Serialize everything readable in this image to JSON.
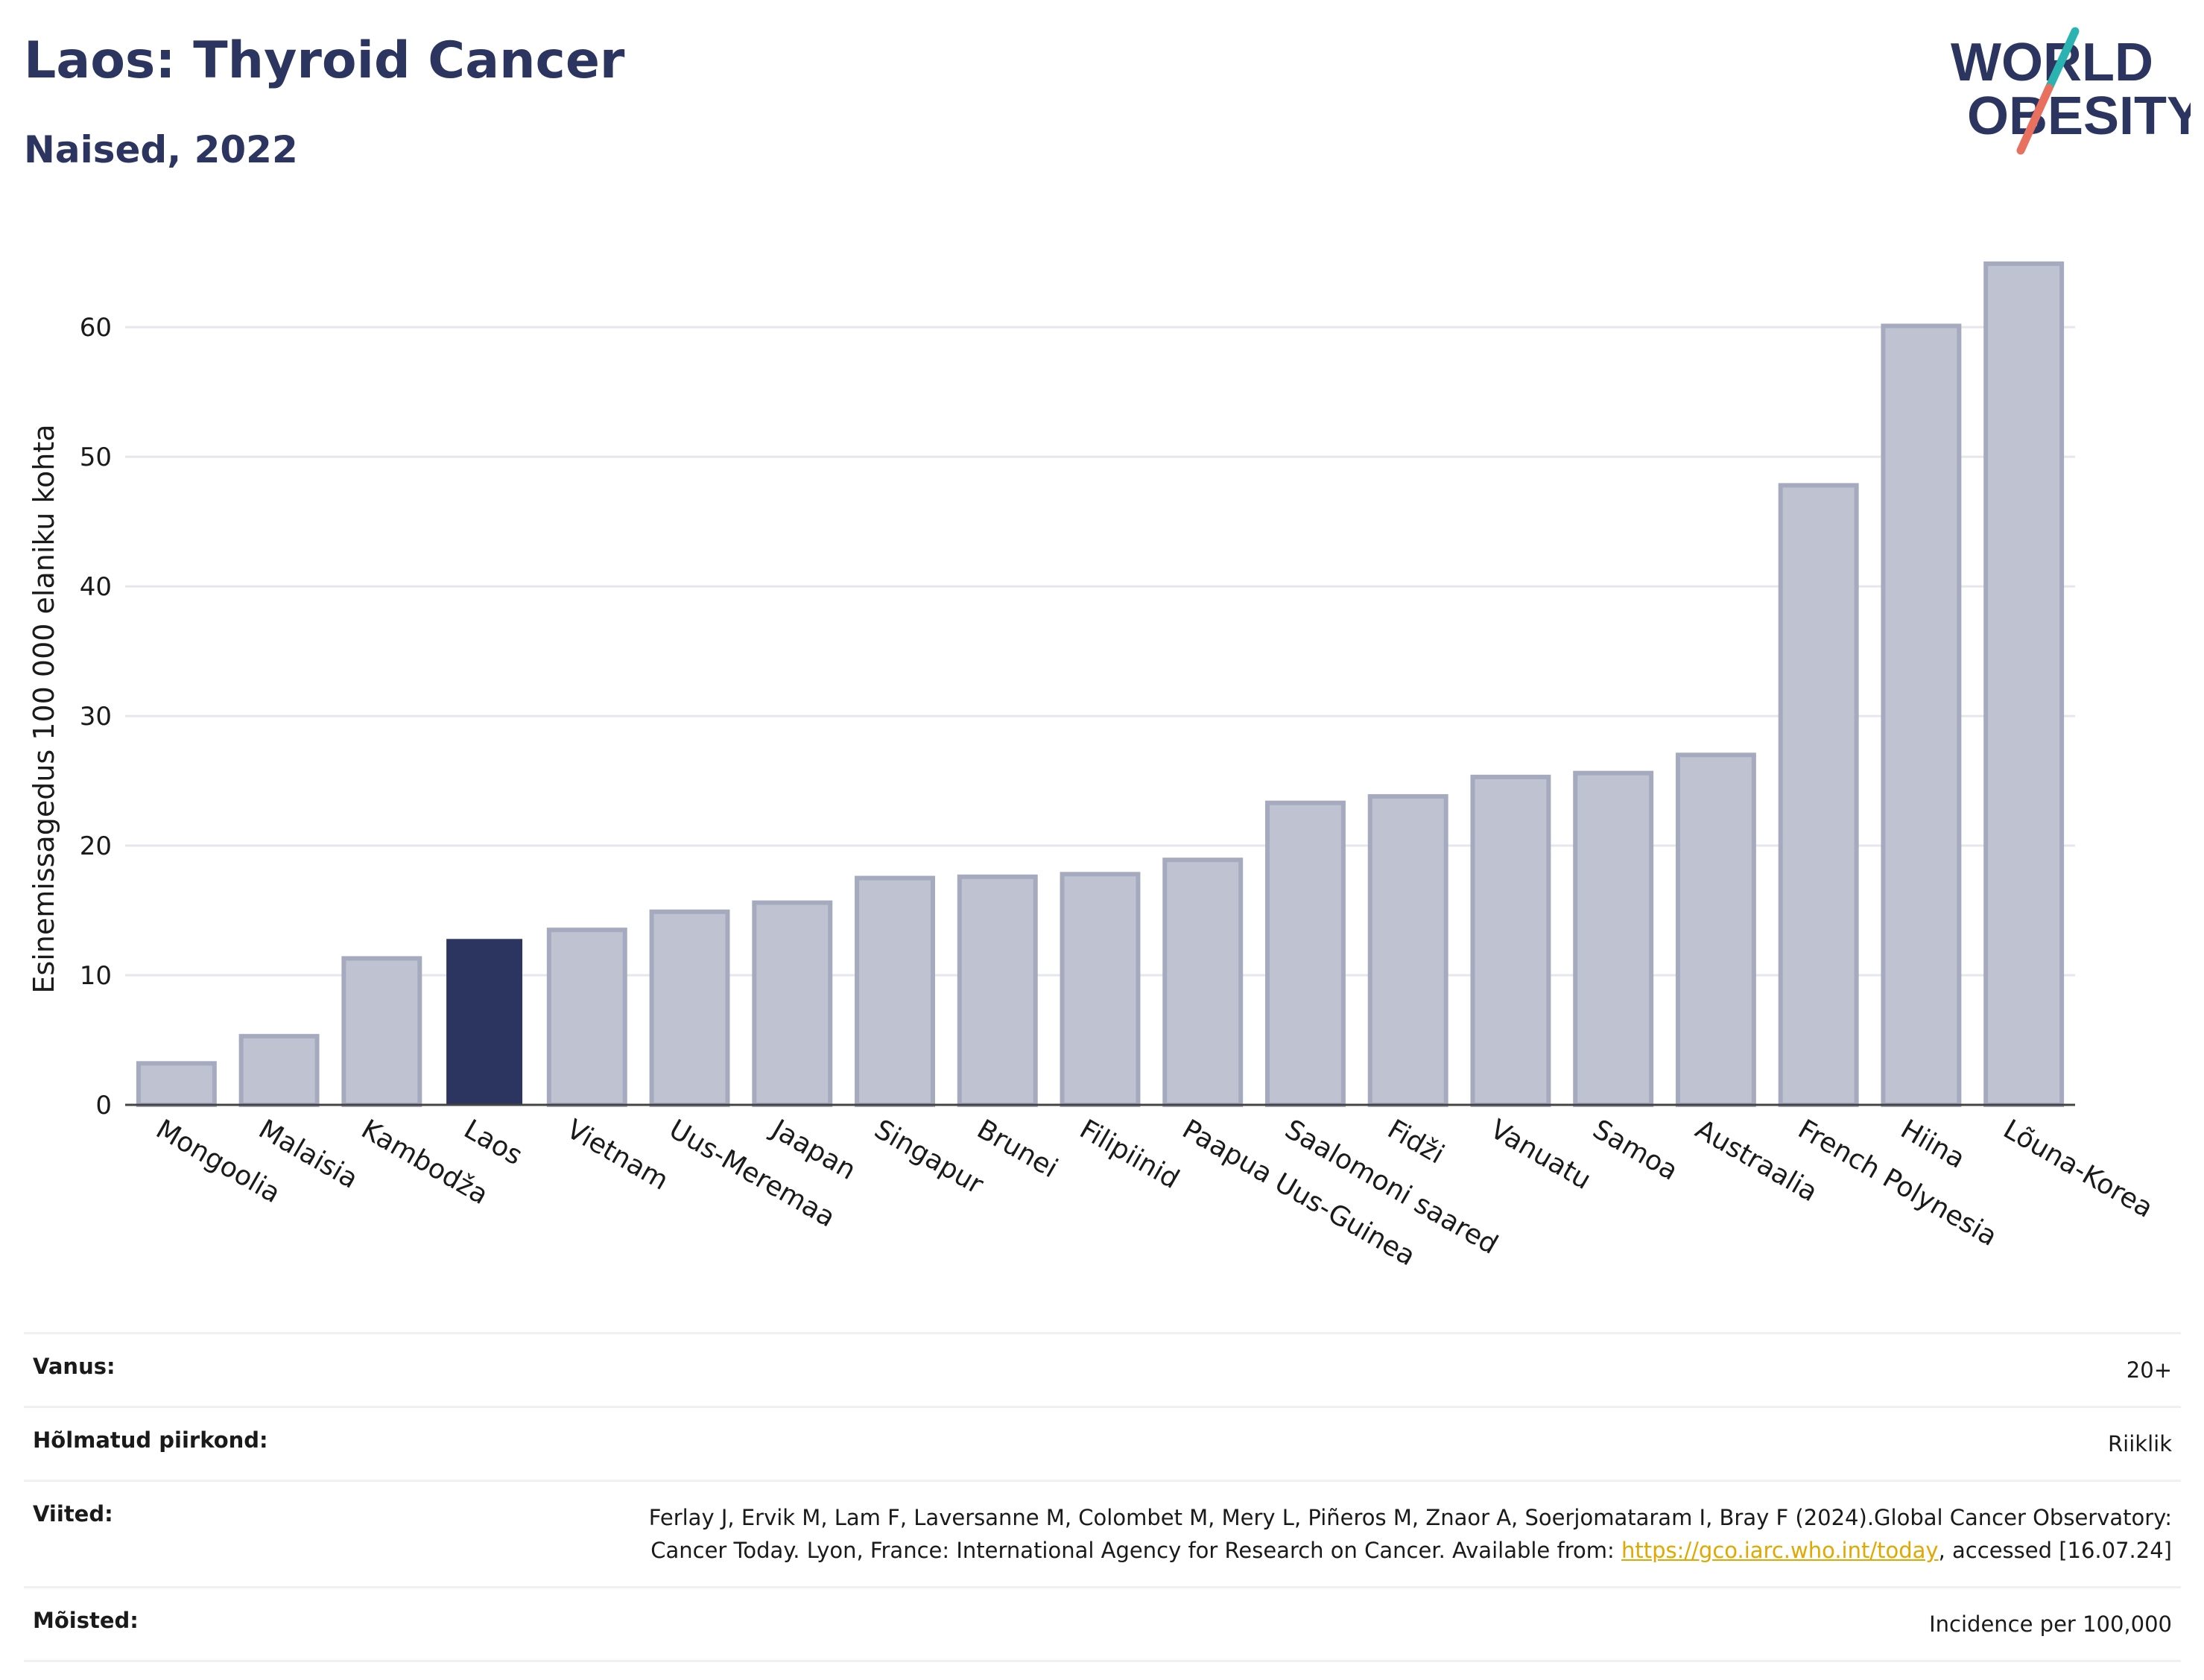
{
  "header": {
    "title": "Laos: Thyroid Cancer",
    "subtitle": "Naised, 2022",
    "logo_line1": "WORLD",
    "logo_line2": "OBESITY"
  },
  "colors": {
    "highlight": "#2b3560",
    "bar": "#bfc2d1",
    "bar_stroke": "#a6aabf",
    "title": "#2b3560",
    "logo_teal": "#2ab3b1",
    "logo_red": "#e8705f"
  },
  "chart_data": {
    "type": "bar",
    "categories": [
      "Mongoolia",
      "Malaisia",
      "Kambodža",
      "Laos",
      "Vietnam",
      "Uus-Meremaa",
      "Jaapan",
      "Singapur",
      "Brunei",
      "Filipiinid",
      "Paapua Uus-Guinea",
      "Saalomoni saared",
      "Fidži",
      "Vanuatu",
      "Samoa",
      "Austraalia",
      "French Polynesia",
      "Hiina",
      "Lõuna-Korea"
    ],
    "values": [
      3.2,
      5.3,
      11.3,
      12.8,
      13.5,
      14.9,
      15.6,
      17.5,
      17.6,
      17.8,
      18.9,
      23.3,
      23.8,
      25.3,
      25.6,
      27.0,
      47.8,
      60.1,
      64.9
    ],
    "highlight": "Laos",
    "ylabel": "Esinemissagedus 100 000 elaniku kohta",
    "yticks": [
      0,
      10,
      20,
      30,
      40,
      50,
      60
    ],
    "ylim": [
      0,
      68
    ],
    "grid": true
  },
  "meta": {
    "age_label": "Vanus:",
    "age_value": "20+",
    "region_label": "Hõlmatud piirkond:",
    "region_value": "Riiklik",
    "refs_label": "Viited:",
    "refs_text": "Ferlay J, Ervik M, Lam F, Laversanne M, Colombet M, Mery L, Piñeros M, Znaor A, Soerjomataram I, Bray F (2024).Global Cancer Observatory: Cancer Today. Lyon, France: International Agency for Research on Cancer. Available from: ",
    "refs_link": "https://gco.iarc.who.int/today",
    "refs_tail": ", accessed [16.07.24]",
    "definitions_label": "Mõisted:",
    "definitions_value": "Incidence per 100,000"
  }
}
